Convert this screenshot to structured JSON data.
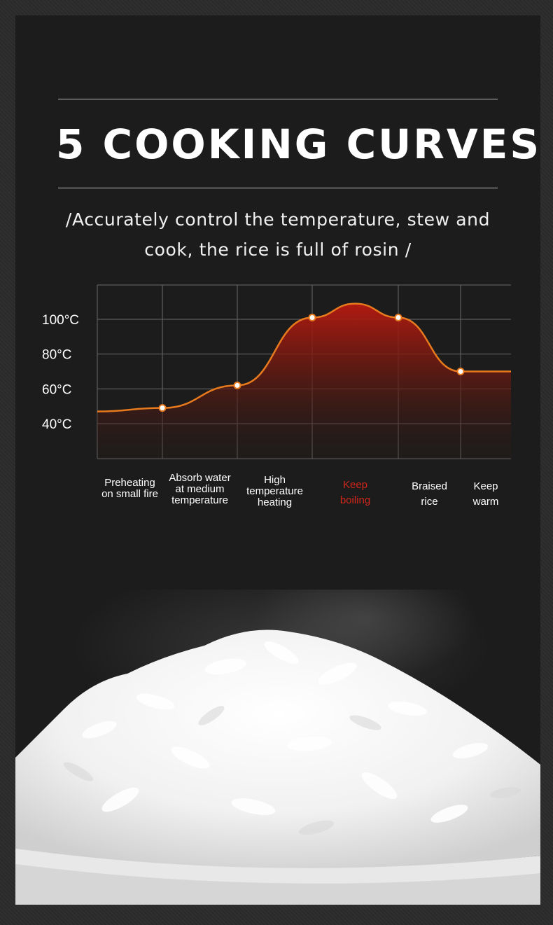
{
  "title": "5 COOKING CURVES",
  "subtitle_line1": "/Accurately control the temperature, stew and",
  "subtitle_line2": "cook, the rice is full of rosin /",
  "chart_data": {
    "type": "area",
    "y_ticks": [
      "100°C",
      "80°C",
      "60°C",
      "40°C"
    ],
    "y_values": [
      100,
      80,
      60,
      40
    ],
    "stages": [
      {
        "label_lines": [
          "Preheating",
          "on small fire"
        ],
        "active": false
      },
      {
        "label_lines": [
          "Absorb water",
          "at medium",
          "temperature"
        ],
        "active": false
      },
      {
        "label_lines": [
          "High",
          "temperature",
          "heating"
        ],
        "active": false
      },
      {
        "label_lines": [
          "Keep",
          "boiling"
        ],
        "active": true
      },
      {
        "label_lines": [
          "Braised",
          "rice"
        ],
        "active": false
      },
      {
        "label_lines": [
          "Keep",
          "warm"
        ],
        "active": false
      }
    ],
    "curve_points": [
      {
        "x": 0,
        "y": 47
      },
      {
        "x": 1,
        "y": 49
      },
      {
        "x": 2,
        "y": 62
      },
      {
        "x": 3,
        "y": 101
      },
      {
        "x": 3.5,
        "y": 109
      },
      {
        "x": 4,
        "y": 101
      },
      {
        "x": 5,
        "y": 70
      },
      {
        "x": 5.7,
        "y": 70
      }
    ],
    "marked_points": [
      {
        "x": 1,
        "y": 49
      },
      {
        "x": 2,
        "y": 62
      },
      {
        "x": 3,
        "y": 101
      },
      {
        "x": 4,
        "y": 101
      },
      {
        "x": 5,
        "y": 70
      }
    ],
    "colors": {
      "line": "#e87a1e",
      "fill_top": "#b81a10",
      "grid": "#6a6a6a",
      "active_label": "#d0261a"
    }
  }
}
